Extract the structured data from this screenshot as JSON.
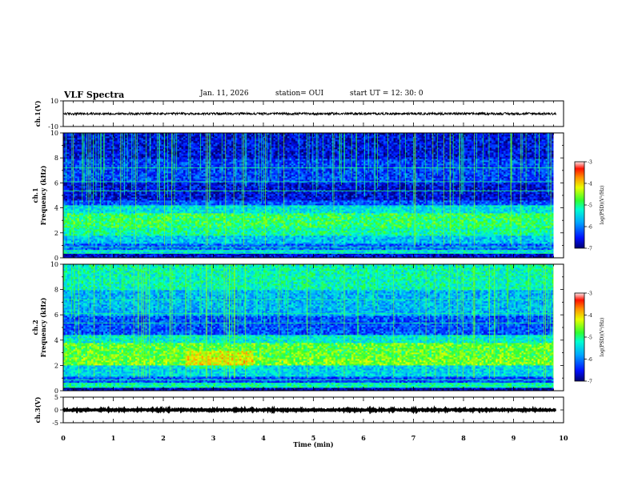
{
  "header": {
    "title": "VLF Spectra",
    "date": "Jan. 11, 2026",
    "station": "station= OUI",
    "start": "start UT = 12: 30: 0"
  },
  "chart_data": [
    {
      "type": "line",
      "name": "ch1-waveform",
      "ylabel": "ch.1(V)",
      "ylim": [
        -10,
        10
      ],
      "yticks": [
        10,
        -10
      ],
      "xlim": [
        0,
        10
      ],
      "level": 0,
      "amplitude": 0.9
    },
    {
      "type": "heatmap",
      "name": "ch1-spectrogram",
      "ylabel_line1": "ch.1",
      "ylabel_line2": "Frequency (kHz)",
      "ylim": [
        0,
        10
      ],
      "yticks": [
        0,
        2,
        4,
        6,
        8,
        10
      ],
      "xlim": [
        0,
        10
      ],
      "data_xmax": 9.8,
      "colorbar": {
        "label": "log(PSD)(V²/Hz)",
        "range": [
          -7,
          -3
        ],
        "ticks": [
          -3,
          -4,
          -5,
          -6,
          -7
        ]
      },
      "bands": [
        {
          "f0": 0,
          "f1": 0.4,
          "level": -6.6
        },
        {
          "f0": 0.4,
          "f1": 0.7,
          "level": -5.4
        },
        {
          "f0": 0.7,
          "f1": 1.1,
          "level": -6.1
        },
        {
          "f0": 1.1,
          "f1": 1.8,
          "level": -5.6
        },
        {
          "f0": 1.8,
          "f1": 2.4,
          "level": -5.1
        },
        {
          "f0": 2.4,
          "f1": 3.6,
          "level": -4.9
        },
        {
          "f0": 3.6,
          "f1": 4.2,
          "level": -5.4
        },
        {
          "f0": 4.2,
          "f1": 4.6,
          "level": -6.2
        },
        {
          "f0": 4.6,
          "f1": 6.0,
          "level": -6.6
        },
        {
          "f0": 6.0,
          "f1": 8.0,
          "level": -6.3
        },
        {
          "f0": 8.0,
          "f1": 10.0,
          "level": -6.6
        }
      ]
    },
    {
      "type": "heatmap",
      "name": "ch2-spectrogram",
      "ylabel_line1": "ch.2",
      "ylabel_line2": "Frequency (kHz)",
      "ylim": [
        0,
        10
      ],
      "yticks": [
        0,
        2,
        4,
        6,
        8,
        10
      ],
      "xlim": [
        0,
        10
      ],
      "data_xmax": 9.8,
      "colorbar": {
        "label": "log(PSD)(V²/Hz)",
        "range": [
          -7,
          -3
        ],
        "ticks": [
          -3,
          -4,
          -5,
          -6,
          -7
        ]
      },
      "bands": [
        {
          "f0": 0,
          "f1": 0.3,
          "level": -6.8
        },
        {
          "f0": 0.3,
          "f1": 0.6,
          "level": -5.2
        },
        {
          "f0": 0.6,
          "f1": 1.2,
          "level": -6.2
        },
        {
          "f0": 1.2,
          "f1": 2.0,
          "level": -5.5
        },
        {
          "f0": 2.0,
          "f1": 2.6,
          "level": -4.6
        },
        {
          "f0": 2.6,
          "f1": 3.8,
          "level": -4.7
        },
        {
          "f0": 3.8,
          "f1": 4.4,
          "level": -5.3
        },
        {
          "f0": 4.4,
          "f1": 6.0,
          "level": -6.2
        },
        {
          "f0": 6.0,
          "f1": 8.0,
          "level": -5.7
        },
        {
          "f0": 8.0,
          "f1": 10.0,
          "level": -5.2
        }
      ]
    },
    {
      "type": "line",
      "name": "ch3-waveform",
      "ylabel": "ch.3(V)",
      "ylim": [
        -5,
        5
      ],
      "yticks": [
        5,
        0,
        -5
      ],
      "xlim": [
        0,
        10
      ],
      "level": 0,
      "amplitude": 0.25
    }
  ],
  "xaxis": {
    "label": "Time (min)",
    "ticks": [
      0,
      1,
      2,
      3,
      4,
      5,
      6,
      7,
      8,
      9,
      10
    ]
  }
}
